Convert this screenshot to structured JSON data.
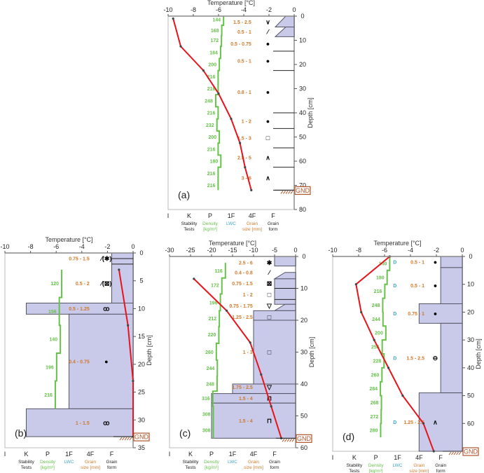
{
  "labels": {
    "temperature_axis": "Temperature [°C]",
    "depth_axis": "Depth [cm]",
    "ground": "GND",
    "hardness_ticks": [
      "I",
      "K",
      "P",
      "1F",
      "4F",
      "F"
    ],
    "categories": [
      {
        "line1": "Stability",
        "line2": "Tests",
        "color": "#222222"
      },
      {
        "line1": "Density",
        "line2": "[kg/m³]",
        "color": "#66c24a"
      },
      {
        "line1": "LWC",
        "line2": "",
        "color": "#3fa6c8"
      },
      {
        "line1": "Grain",
        "line2": "size [mm]",
        "color": "#d07a2c"
      },
      {
        "line1": "Grain",
        "line2": "form",
        "color": "#222222"
      }
    ]
  },
  "colors": {
    "temperature": "#e8141c",
    "density": "#66c24a",
    "layer_fill": "#c9c9ea",
    "layer_edge": "#555566",
    "ground": "#b0552a"
  },
  "chart_data": [
    {
      "type": "snow-profile",
      "title": "(a)",
      "tlim": [
        -10,
        0
      ],
      "t_ticks": [
        -10,
        -8,
        -6,
        -4,
        -2,
        0
      ],
      "dlim": [
        0,
        80
      ],
      "d_ticks": [
        0,
        10,
        20,
        30,
        40,
        50,
        60,
        70,
        80
      ],
      "ground_depth": 72,
      "temperature": [
        [
          1,
          -9.6
        ],
        [
          12.5,
          -9.0
        ],
        [
          22.5,
          -7.2
        ],
        [
          32,
          -6.0
        ],
        [
          42.5,
          -5.0
        ],
        [
          52.5,
          -4.3
        ],
        [
          62.5,
          -3.9
        ],
        [
          72,
          -3.4
        ]
      ],
      "density_range": [
        0,
        72
      ],
      "density": [
        [
          1.5,
          144
        ],
        [
          6,
          168
        ],
        [
          10,
          172
        ],
        [
          15,
          184
        ],
        [
          20,
          200
        ],
        [
          25,
          216
        ],
        [
          30,
          216
        ],
        [
          35,
          248
        ],
        [
          40,
          216
        ],
        [
          45,
          232
        ],
        [
          50,
          200
        ],
        [
          55,
          216
        ],
        [
          60,
          180
        ],
        [
          65,
          216
        ],
        [
          70,
          216
        ]
      ],
      "layers": [
        [
          0,
          4.5,
          0.4,
          0.9
        ],
        [
          4.5,
          8.5,
          0.4,
          0.9
        ]
      ],
      "boundaries": [
        14.5,
        22.5,
        40,
        46.5,
        54.5,
        62.5,
        72
      ],
      "grains": [
        [
          2.5,
          "1.5 - 2.5",
          "∨",
          ""
        ],
        [
          6.5,
          "0.5 - 1",
          "⁄",
          ""
        ],
        [
          11.5,
          "0.5 - 0.75",
          "●",
          ""
        ],
        [
          18.5,
          "0.5 - 1",
          "●",
          ""
        ],
        [
          31.5,
          "0.8 - 1",
          "●",
          ""
        ],
        [
          43.5,
          "1 - 2",
          "●",
          ""
        ],
        [
          50.5,
          "1.5 - 3",
          "□",
          ""
        ],
        [
          58.5,
          "2.5 - 5",
          "∧",
          ""
        ],
        [
          67,
          "3 - 6",
          "∧",
          ""
        ]
      ]
    },
    {
      "type": "snow-profile",
      "title": "(b)",
      "tlim": [
        -10,
        0
      ],
      "t_ticks": [
        -10,
        -8,
        -6,
        -4,
        -2,
        0
      ],
      "dlim": [
        0,
        35
      ],
      "d_ticks": [
        0,
        5,
        10,
        15,
        20,
        25,
        30,
        35
      ],
      "ground_depth": 33,
      "temperature": [
        [
          3,
          -1.1
        ],
        [
          13,
          -0.4
        ],
        [
          23,
          0
        ],
        [
          33,
          0
        ]
      ],
      "density_range": [
        3,
        28
      ],
      "density": [
        [
          5.5,
          120
        ],
        [
          10.5,
          156
        ],
        [
          15.5,
          140
        ],
        [
          20.5,
          196
        ],
        [
          25.5,
          216
        ]
      ],
      "layers": [
        [
          0,
          9,
          1,
          1
        ],
        [
          9,
          11,
          5,
          5
        ],
        [
          11,
          28,
          3,
          3
        ],
        [
          28,
          33,
          5,
          5
        ]
      ],
      "boundaries": [
        1,
        2
      ],
      "grains": [
        [
          1,
          "0.75 - 1.5",
          "⁄(✱)",
          ""
        ],
        [
          5.5,
          "0.5 - 2",
          "⁄(⊠)",
          ""
        ],
        [
          10,
          "0.5 - 1.25",
          "ꝏ",
          ""
        ],
        [
          19.5,
          "0.4 - 0.75",
          "●",
          ""
        ],
        [
          30.5,
          "1 - 1.5",
          "ꝏ",
          ""
        ]
      ]
    },
    {
      "type": "snow-profile",
      "title": "(c)",
      "tlim": [
        -30,
        0
      ],
      "t_ticks": [
        -30,
        -25,
        -20,
        -15,
        -10,
        -5,
        0
      ],
      "dlim": [
        0,
        60
      ],
      "d_ticks": [
        0,
        10,
        20,
        30,
        40,
        50,
        60
      ],
      "ground_depth": 57,
      "temperature": [
        [
          7,
          -24.2
        ],
        [
          17,
          -16.4
        ],
        [
          27,
          -10.8
        ],
        [
          37,
          -8.2
        ],
        [
          47,
          -5.8
        ],
        [
          57,
          -3.4
        ]
      ],
      "density_range": [
        2,
        57
      ],
      "density": [
        [
          4.5,
          116
        ],
        [
          9,
          172
        ],
        [
          14.5,
          196
        ],
        [
          19.5,
          212
        ],
        [
          24.5,
          220
        ],
        [
          30,
          260
        ],
        [
          35,
          244
        ],
        [
          40,
          248
        ],
        [
          44.5,
          316
        ],
        [
          49.5,
          308
        ],
        [
          54.5,
          308
        ]
      ],
      "layers": [
        [
          0,
          3,
          1,
          1
        ],
        [
          5,
          7,
          0.5,
          1
        ],
        [
          7,
          15,
          1,
          1
        ],
        [
          15,
          17,
          0.5,
          1
        ],
        [
          17,
          20,
          2,
          2
        ],
        [
          20,
          40,
          2,
          2
        ],
        [
          40,
          43,
          3,
          3
        ],
        [
          43,
          46,
          4,
          4
        ],
        [
          46,
          57,
          4,
          4
        ]
      ],
      "boundaries": [
        10,
        13.5
      ],
      "grains": [
        [
          2,
          "2.5 - 6",
          "✱",
          ""
        ],
        [
          5,
          "0.4 - 0.8",
          "⁄",
          ""
        ],
        [
          8.5,
          "0.75 - 1.5",
          "⊠",
          ""
        ],
        [
          12,
          "1 - 2",
          "□",
          ""
        ],
        [
          15.5,
          "0.75 - 1.75",
          "▽",
          ""
        ],
        [
          19,
          "1.25 - 2.5",
          "□",
          ""
        ],
        [
          30,
          "1 - 3",
          "□",
          ""
        ],
        [
          41,
          "1.75 - 2.5",
          "▽",
          ""
        ],
        [
          44.5,
          "1.5 - 4",
          "⊓",
          ""
        ],
        [
          51.5,
          "1.5 - 4",
          "⊓",
          ""
        ]
      ]
    },
    {
      "type": "snow-profile",
      "title": "(d)",
      "tlim": [
        -10,
        0
      ],
      "t_ticks": [
        -10,
        -8,
        -6,
        -4,
        -2,
        0
      ],
      "dlim": [
        0,
        70
      ],
      "d_ticks": [
        0,
        10,
        20,
        30,
        40,
        50,
        60
      ],
      "ground_depth": 70,
      "temperature": [
        [
          0,
          -5.6
        ],
        [
          10,
          -8.2
        ],
        [
          20,
          -7.8
        ],
        [
          30,
          -6.8
        ],
        [
          40,
          -5.7
        ],
        [
          50,
          -4.6
        ],
        [
          60,
          -3.0
        ],
        [
          70,
          -2.2
        ]
      ],
      "density_range": [
        0,
        65
      ],
      "density": [
        [
          2.5,
          140
        ],
        [
          7.5,
          180
        ],
        [
          12.5,
          216
        ],
        [
          17.5,
          248
        ],
        [
          22.5,
          244
        ],
        [
          27.5,
          200
        ],
        [
          32.5,
          256
        ],
        [
          37.5,
          228
        ],
        [
          42.5,
          260
        ],
        [
          47.5,
          284
        ],
        [
          52.5,
          268
        ],
        [
          57.5,
          272
        ],
        [
          62.5,
          280
        ]
      ],
      "layers": [
        [
          0,
          4,
          1,
          1
        ],
        [
          4,
          17,
          1,
          1
        ],
        [
          17,
          24,
          2,
          2
        ],
        [
          24,
          49,
          1,
          1
        ],
        [
          49,
          70,
          2,
          2
        ]
      ],
      "boundaries": [],
      "grains": [
        [
          2,
          "0.5 - 1",
          "●",
          "D"
        ],
        [
          10.5,
          "0.5 - 1",
          "●",
          "D"
        ],
        [
          20.5,
          "0.75 - 1",
          "●",
          "D"
        ],
        [
          36.5,
          "1.5 - 2.5",
          "⊖",
          "D"
        ],
        [
          59.5,
          "1.25 - 2.5",
          "∧",
          "D"
        ]
      ]
    }
  ]
}
